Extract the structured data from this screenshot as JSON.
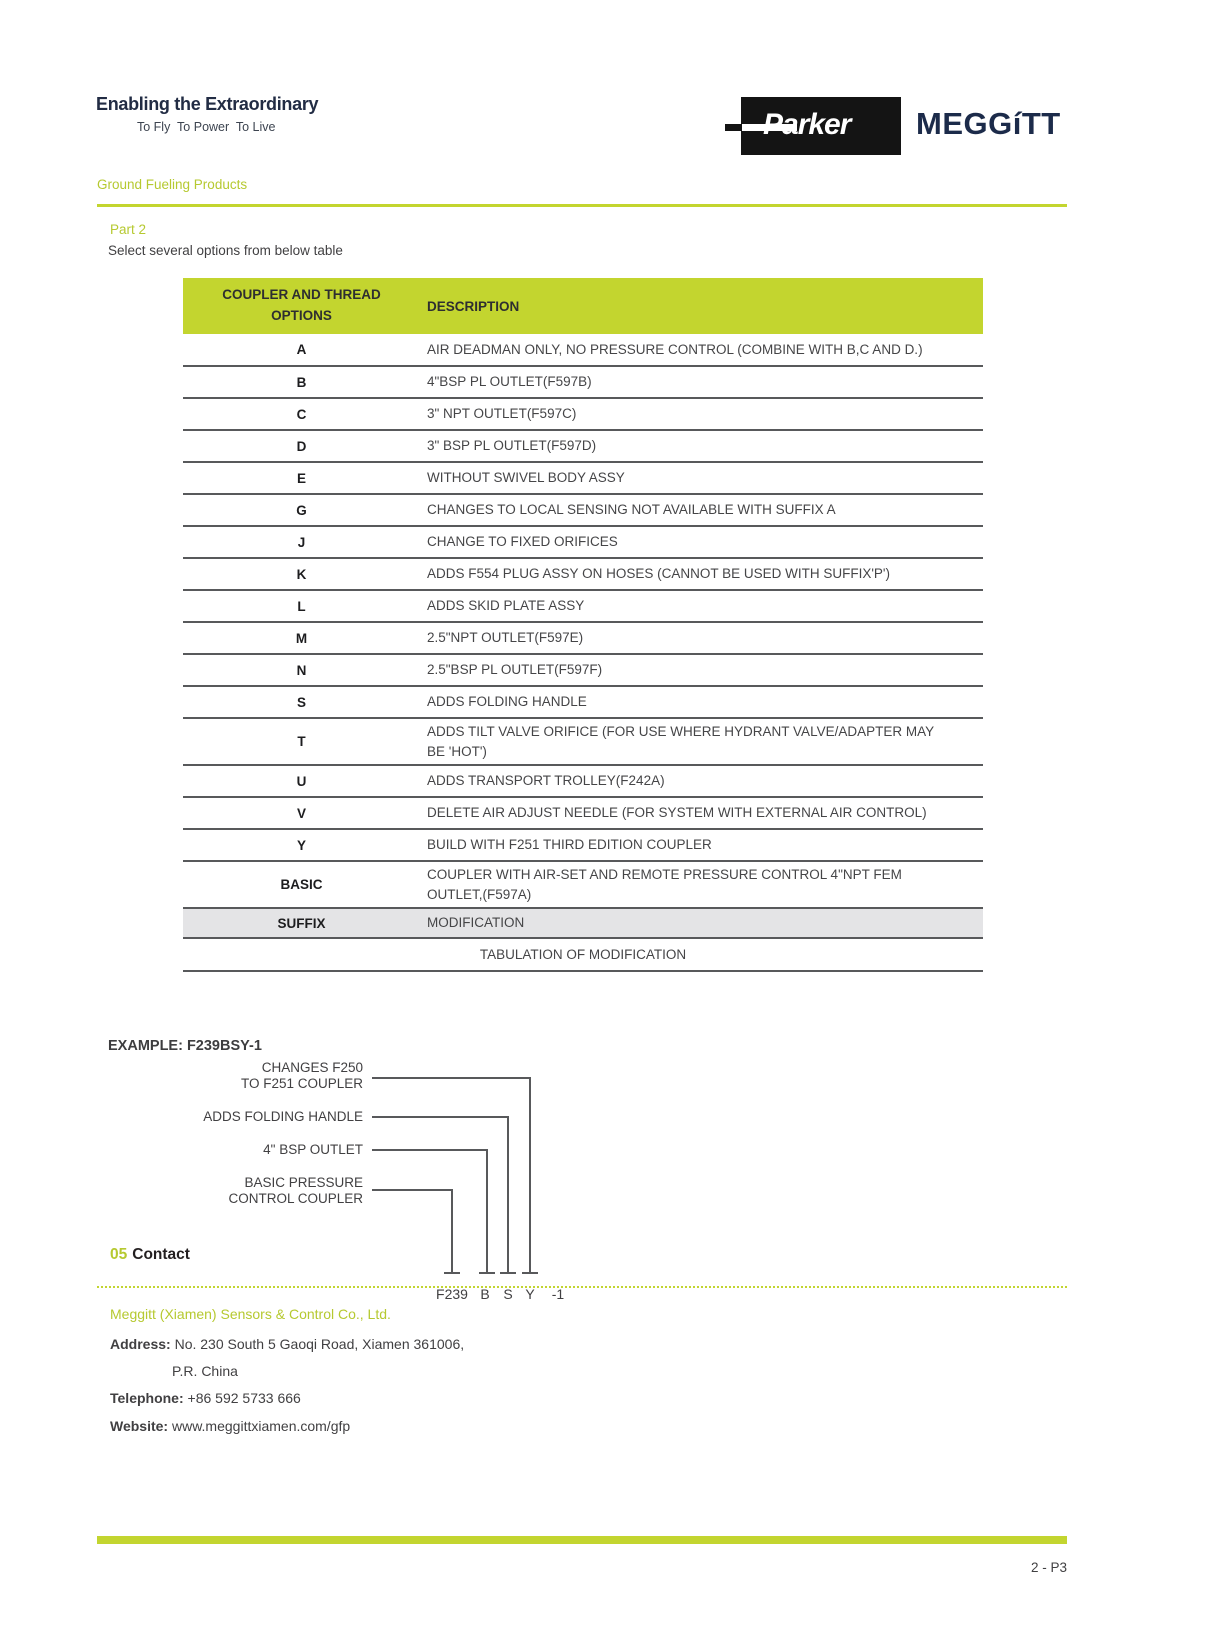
{
  "header": {
    "tagline_title": "Enabling the Extraordinary",
    "tagline_subtitle": "To Fly  To Power  To Live",
    "parker_logo": "Parker",
    "meggitt_logo": "MEGGíTT",
    "section_label": "Ground Fueling Products"
  },
  "part2": {
    "title": "Part 2",
    "subtitle": "Select several options from below table"
  },
  "table": {
    "col1_header": "COUPLER AND THREAD OPTIONS",
    "col2_header": "DESCRIPTION",
    "rows": [
      {
        "option": "A",
        "description": "AIR DEADMAN ONLY, NO PRESSURE CONTROL (COMBINE WITH B,C AND D.)"
      },
      {
        "option": "B",
        "description": "4\"BSP PL OUTLET(F597B)"
      },
      {
        "option": "C",
        "description": "3\" NPT OUTLET(F597C)"
      },
      {
        "option": "D",
        "description": "3\" BSP PL OUTLET(F597D)"
      },
      {
        "option": "E",
        "description": "WITHOUT SWIVEL BODY ASSY"
      },
      {
        "option": "G",
        "description": "CHANGES TO LOCAL SENSING NOT AVAILABLE WITH SUFFIX A"
      },
      {
        "option": "J",
        "description": "CHANGE TO FIXED ORIFICES"
      },
      {
        "option": "K",
        "description": "ADDS F554 PLUG ASSY ON HOSES (CANNOT BE USED WITH SUFFIX'P')"
      },
      {
        "option": "L",
        "description": "ADDS SKID PLATE ASSY"
      },
      {
        "option": "M",
        "description": "2.5\"NPT OUTLET(F597E)"
      },
      {
        "option": "N",
        "description": "2.5\"BSP PL OUTLET(F597F)"
      },
      {
        "option": "S",
        "description": "ADDS FOLDING HANDLE"
      },
      {
        "option": "T",
        "description": "ADDS TILT VALVE ORIFICE (FOR USE WHERE HYDRANT VALVE/ADAPTER MAY BE 'HOT')"
      },
      {
        "option": "U",
        "description": "ADDS TRANSPORT TROLLEY(F242A)"
      },
      {
        "option": "V",
        "description": "DELETE AIR ADJUST NEEDLE (FOR SYSTEM WITH EXTERNAL AIR CONTROL)"
      },
      {
        "option": "Y",
        "description": "BUILD WITH F251 THIRD EDITION COUPLER"
      },
      {
        "option": "BASIC",
        "description": "COUPLER WITH AIR-SET AND REMOTE PRESSURE CONTROL 4\"NPT FEM OUTLET,(F597A)"
      }
    ],
    "suffix_row": {
      "option": "SUFFIX",
      "description": "MODIFICATION"
    },
    "footer_row": "TABULATION OF MODIFICATION"
  },
  "example": {
    "title": "EXAMPLE: F239BSY-1",
    "callouts": [
      {
        "label": "CHANGES F250\nTO F251 COUPLER",
        "points_to": "Y"
      },
      {
        "label": "ADDS FOLDING HANDLE",
        "points_to": "S"
      },
      {
        "label": "4\" BSP OUTLET",
        "points_to": "B"
      },
      {
        "label": "BASIC PRESSURE\nCONTROL COUPLER",
        "points_to": "F239"
      }
    ],
    "code_parts": {
      "p0": "F239",
      "p1": "B",
      "p2": "S",
      "p3": "Y",
      "p4": "-1"
    }
  },
  "contact": {
    "heading_number": "05",
    "heading": "Contact",
    "company": "Meggitt (Xiamen) Sensors & Control Co., Ltd.",
    "address_label": "Address:",
    "address_value": "No. 230 South 5 Gaoqi Road, Xiamen 361006,",
    "address_line2": "P.R. China",
    "telephone_label": "Telephone:",
    "telephone_value": "+86 592 5733 666",
    "website_label": "Website:",
    "website_value": "www.meggittxiamen.com/gfp"
  },
  "footer": {
    "page_number": "2 - P3"
  },
  "colors": {
    "lime_green": "#c3d52f",
    "navy": "#1c2b4a",
    "table_border_gray": "#58595b",
    "suffix_row_gray": "#e4e4e6",
    "body_text": "#414042"
  }
}
